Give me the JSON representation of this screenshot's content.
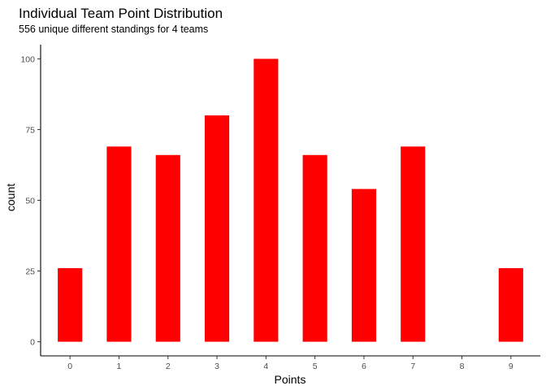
{
  "chart_data": {
    "type": "bar",
    "title": "Individual Team Point Distribution",
    "subtitle": "556 unique different standings for 4 teams",
    "xlabel": "Points",
    "ylabel": "count",
    "categories": [
      "0",
      "1",
      "2",
      "3",
      "4",
      "5",
      "6",
      "7",
      "8",
      "9"
    ],
    "values": [
      26,
      69,
      66,
      80,
      100,
      66,
      54,
      69,
      0,
      26
    ],
    "ylim": [
      -5,
      105
    ],
    "yticks": [
      0,
      25,
      50,
      75,
      100
    ],
    "grid": false,
    "bar_color": "#ff0000"
  }
}
